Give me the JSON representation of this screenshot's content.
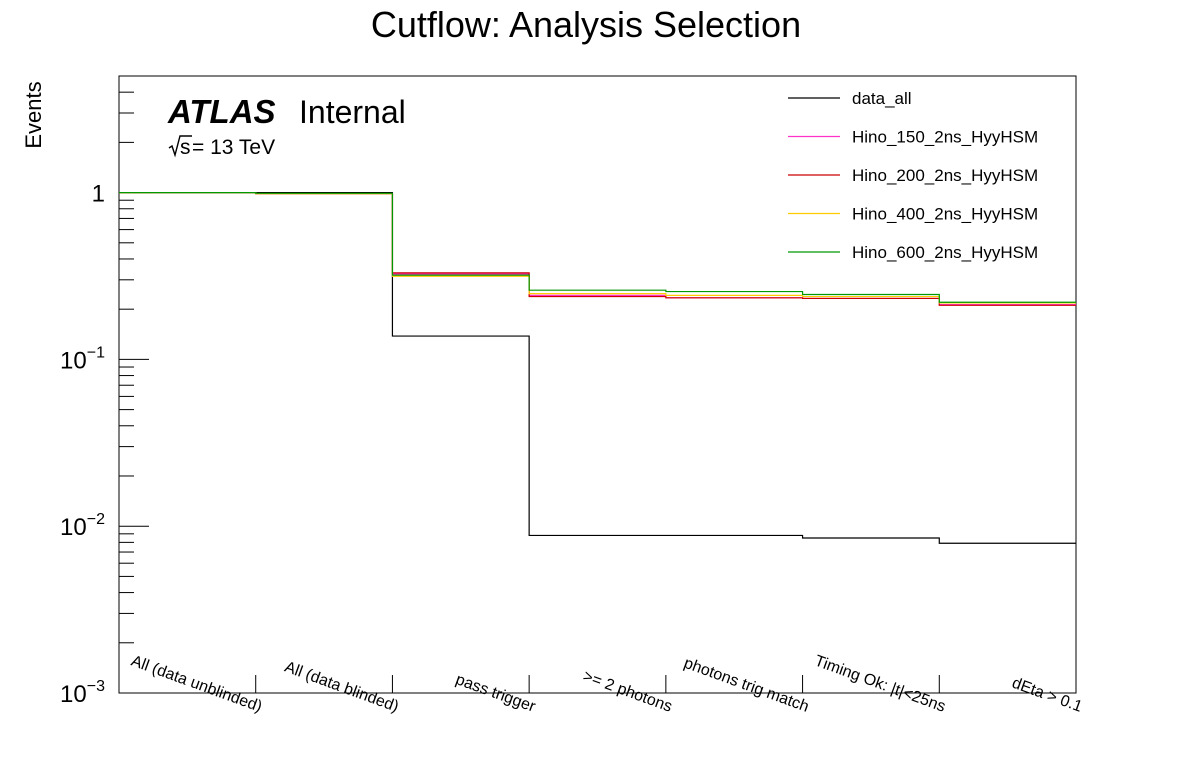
{
  "chart_data": {
    "type": "line",
    "title": "Cutflow: Analysis Selection",
    "xlabel": "",
    "ylabel": "Events",
    "y_scale": "log",
    "ylim": [
      0.001,
      5
    ],
    "y_ticks": [
      {
        "base": "1",
        "exp": ""
      },
      {
        "base": "10",
        "exp": "−1"
      },
      {
        "base": "10",
        "exp": "−2"
      },
      {
        "base": "10",
        "exp": "−3"
      }
    ],
    "categories": [
      "All (data unblinded)",
      "All (data blinded)",
      "pass trigger",
      ">= 2 photons",
      "photons trig match",
      "Timing Ok: |t|<25ns",
      "dEta > 0.1"
    ],
    "annotation": {
      "experiment": "ATLAS",
      "status": "Internal",
      "energy_prefix": "s",
      "energy_text": " = 13 TeV"
    },
    "legend_position": "top-right",
    "series": [
      {
        "name": "data_all",
        "color": "#000000",
        "values": [
          1.0,
          1.0,
          0.138,
          0.0088,
          0.0088,
          0.0085,
          0.0079
        ]
      },
      {
        "name": "Hino_150_2ns_HyyHSM",
        "color": "#ff33cc",
        "values": [
          1.0,
          0.985,
          0.325,
          0.242,
          0.234,
          0.232,
          0.213
        ]
      },
      {
        "name": "Hino_200_2ns_HyyHSM",
        "color": "#cc0000",
        "values": [
          1.0,
          0.985,
          0.33,
          0.238,
          0.234,
          0.232,
          0.211
        ]
      },
      {
        "name": "Hino_400_2ns_HyyHSM",
        "color": "#ffcc00",
        "values": [
          1.0,
          0.985,
          0.315,
          0.248,
          0.242,
          0.238,
          0.218
        ]
      },
      {
        "name": "Hino_600_2ns_HyyHSM",
        "color": "#009900",
        "values": [
          1.0,
          0.99,
          0.32,
          0.26,
          0.255,
          0.245,
          0.22
        ]
      }
    ]
  }
}
